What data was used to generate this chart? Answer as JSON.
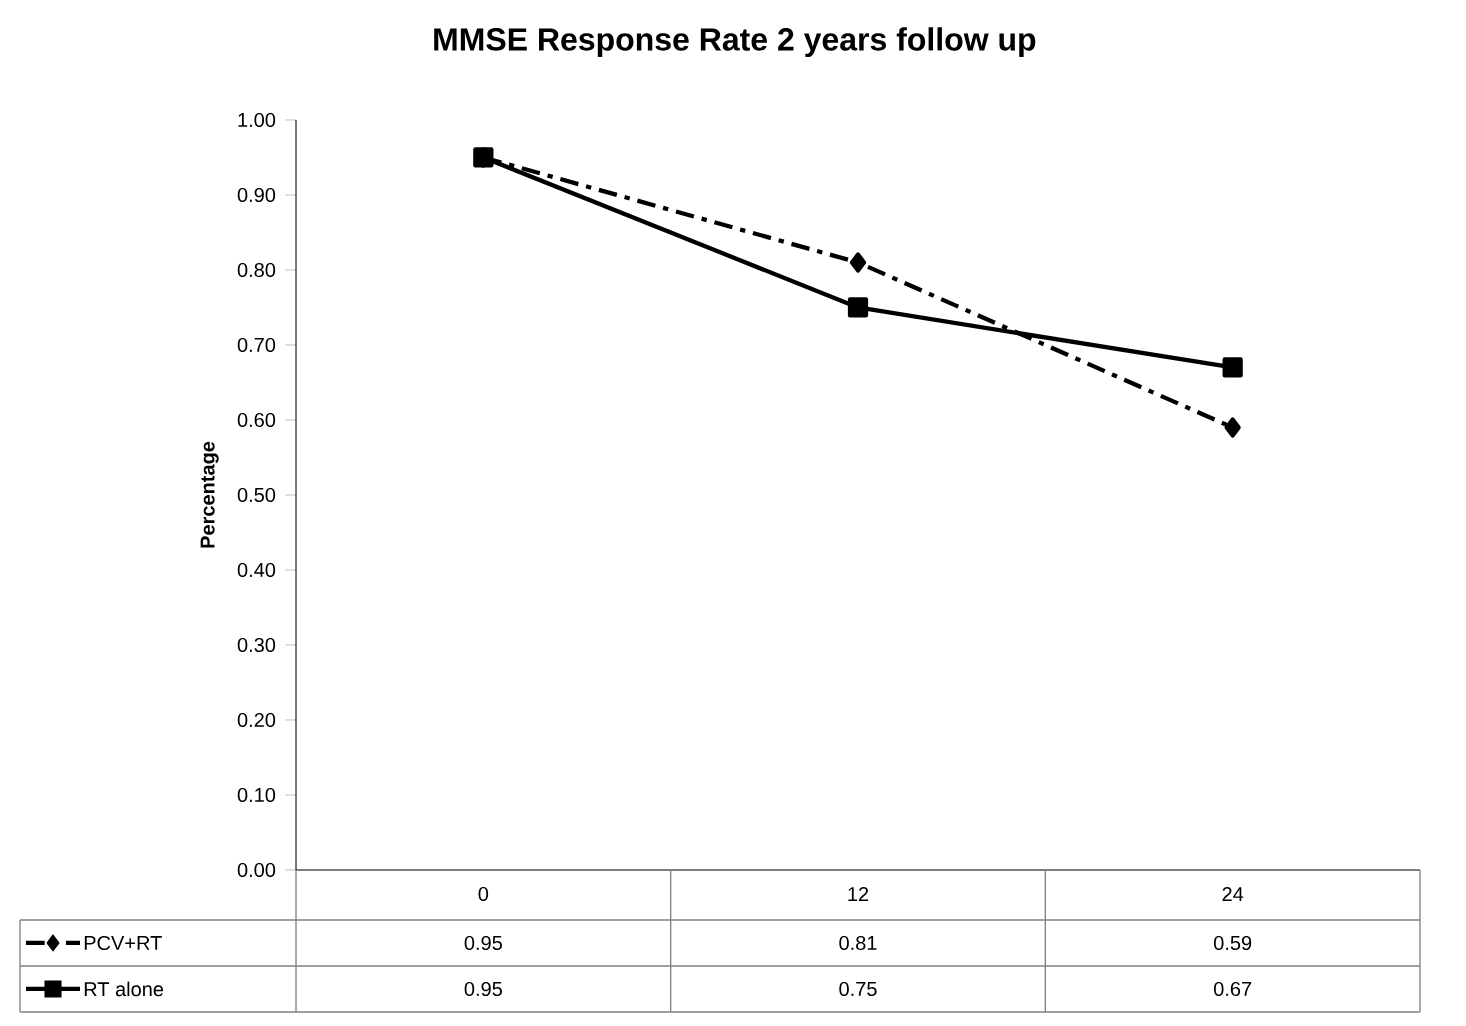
{
  "chart_data": {
    "type": "line",
    "title": "MMSE Response Rate 2 years follow up",
    "ylabel": "Percentage",
    "categories": [
      "0",
      "12",
      "24"
    ],
    "series": [
      {
        "name": "PCV+RT",
        "color": "#000000",
        "values": [
          0.95,
          0.81,
          0.59
        ],
        "marker": "diamond",
        "line_style": "dashed"
      },
      {
        "name": "RT alone",
        "color": "#000000",
        "values": [
          0.95,
          0.75,
          0.67
        ],
        "marker": "square",
        "line_style": "solid"
      }
    ],
    "ylim": [
      0,
      1
    ],
    "yticks": [
      {
        "value": 0,
        "label": "0.00"
      },
      {
        "value": 0.1,
        "label": "0.10"
      },
      {
        "value": 0.2,
        "label": "0.20"
      },
      {
        "value": 0.3,
        "label": "0.30"
      },
      {
        "value": 0.4,
        "label": "0.40"
      },
      {
        "value": 0.5,
        "label": "0.50"
      },
      {
        "value": 0.6,
        "label": "0.60"
      },
      {
        "value": 0.7,
        "label": "0.70"
      },
      {
        "value": 0.8,
        "label": "0.80"
      },
      {
        "value": 0.9,
        "label": "0.90"
      },
      {
        "value": 1,
        "label": "1.00"
      }
    ],
    "data_labels": true,
    "legend": "bottom left",
    "grid": false
  }
}
